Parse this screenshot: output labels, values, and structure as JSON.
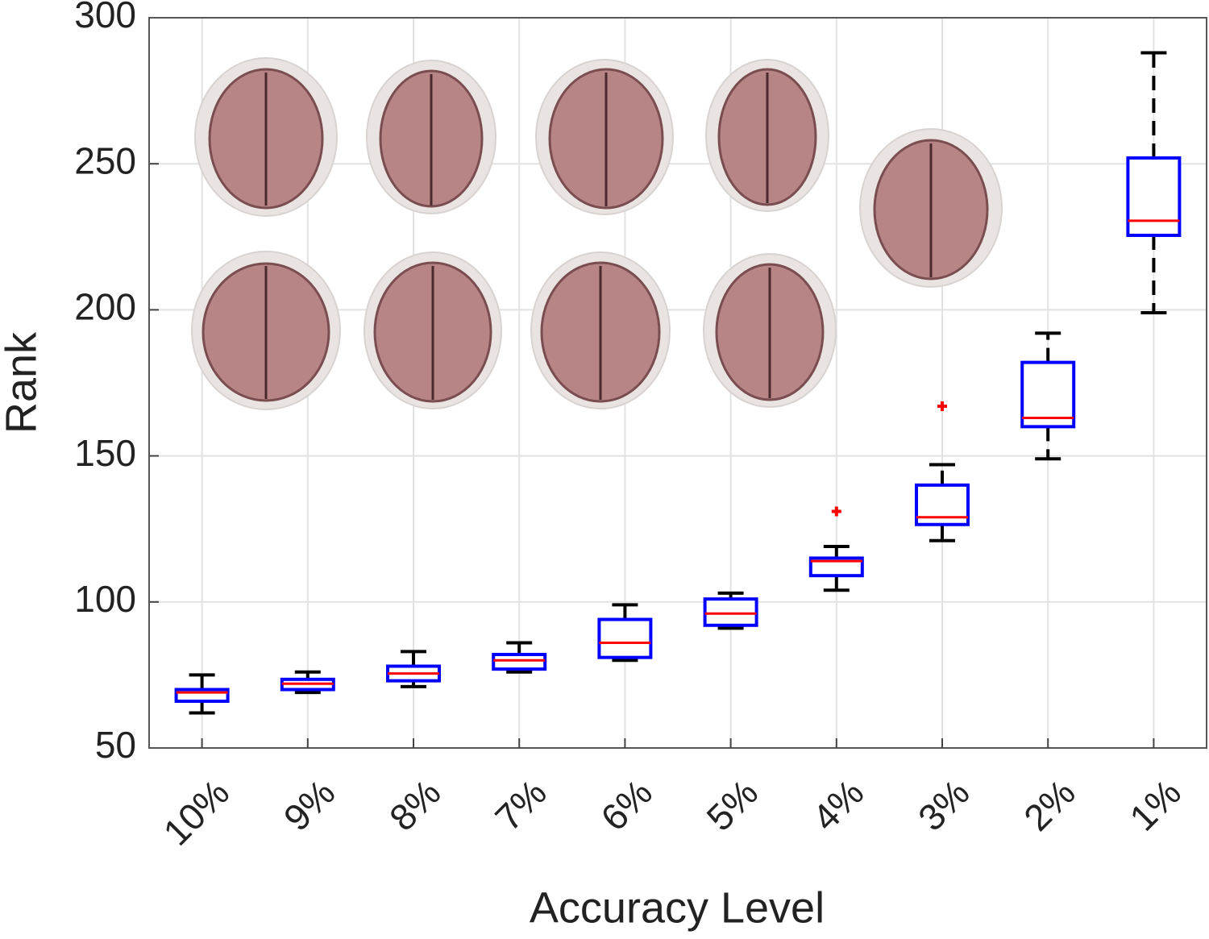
{
  "chart_data": {
    "type": "box",
    "x_label": "Accuracy Level",
    "y_label": "Rank",
    "categories": [
      "10%",
      "9%",
      "8%",
      "7%",
      "6%",
      "5%",
      "4%",
      "3%",
      "2%",
      "1%"
    ],
    "whisker_low": [
      62,
      69,
      71,
      76,
      80,
      91,
      104,
      121,
      149,
      199
    ],
    "q1": [
      66,
      70,
      73,
      77,
      81,
      92,
      109,
      126.5,
      160,
      225.5
    ],
    "median": [
      69,
      72,
      75.5,
      80,
      86,
      96,
      114,
      129,
      163,
      230.5
    ],
    "q3": [
      70,
      73.5,
      78,
      82,
      94,
      101,
      115,
      140,
      182,
      252
    ],
    "whisker_high": [
      75,
      76,
      83,
      86,
      99,
      103,
      119,
      147,
      192,
      288
    ],
    "outliers": [
      [],
      [],
      [],
      [],
      [],
      [],
      [
        131
      ],
      [
        167
      ],
      [],
      []
    ],
    "box_color": "#0000ff",
    "median_color": "#ff0000",
    "whisker_color": "#000000",
    "outlier_color": "#ff0000",
    "ylim": [
      50,
      300
    ],
    "yticks": [
      50,
      100,
      150,
      200,
      250,
      300
    ],
    "grid": true
  }
}
